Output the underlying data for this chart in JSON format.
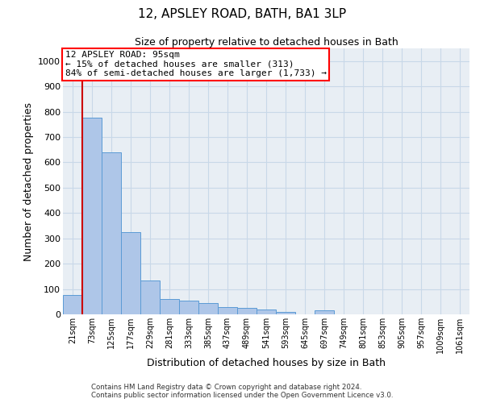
{
  "title": "12, APSLEY ROAD, BATH, BA1 3LP",
  "subtitle": "Size of property relative to detached houses in Bath",
  "xlabel": "Distribution of detached houses by size in Bath",
  "ylabel": "Number of detached properties",
  "annotation_line1": "12 APSLEY ROAD: 95sqm",
  "annotation_line2": "← 15% of detached houses are smaller (313)",
  "annotation_line3": "84% of semi-detached houses are larger (1,733) →",
  "footer_line1": "Contains HM Land Registry data © Crown copyright and database right 2024.",
  "footer_line2": "Contains public sector information licensed under the Open Government Licence v3.0.",
  "bin_labels": [
    "21sqm",
    "73sqm",
    "125sqm",
    "177sqm",
    "229sqm",
    "281sqm",
    "333sqm",
    "385sqm",
    "437sqm",
    "489sqm",
    "541sqm",
    "593sqm",
    "645sqm",
    "697sqm",
    "749sqm",
    "801sqm",
    "853sqm",
    "905sqm",
    "957sqm",
    "1009sqm",
    "1061sqm"
  ],
  "bar_heights": [
    75,
    775,
    640,
    325,
    135,
    60,
    55,
    45,
    30,
    25,
    20,
    10,
    0,
    15,
    0,
    0,
    0,
    0,
    0,
    0,
    0
  ],
  "bar_color": "#aec6e8",
  "bar_edge_color": "#5b9bd5",
  "vline_x": 0.5,
  "vline_color": "#cc0000",
  "bg_color": "#e8eef4",
  "grid_color": "#c8d8e8",
  "ylim": [
    0,
    1050
  ],
  "yticks": [
    0,
    100,
    200,
    300,
    400,
    500,
    600,
    700,
    800,
    900,
    1000
  ]
}
